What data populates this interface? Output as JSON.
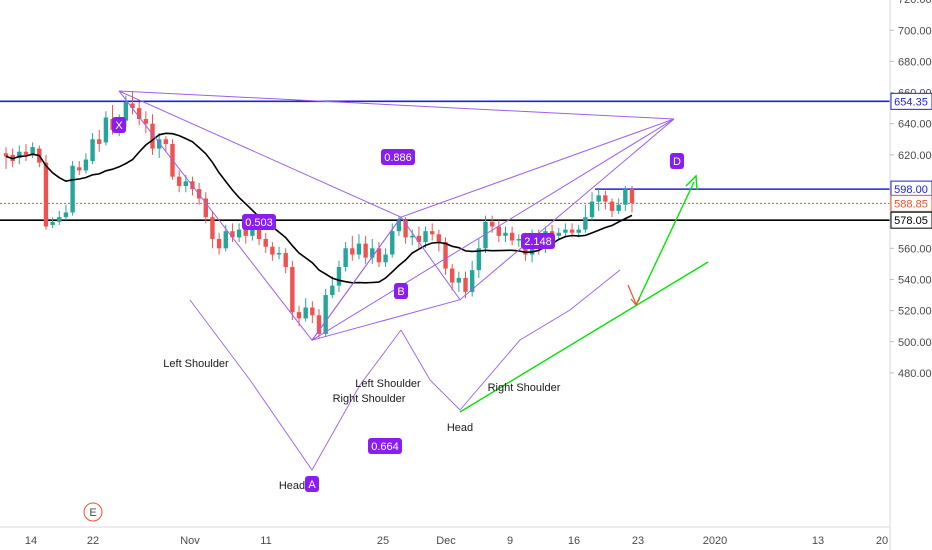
{
  "chart_data": {
    "type": "candlestick",
    "y_ticks": [
      "720.00",
      "700.00",
      "680.00",
      "660.00",
      "640.00",
      "620.00",
      "600.00",
      "580.00",
      "560.00",
      "540.00",
      "520.00",
      "500.00",
      "480.00"
    ],
    "x_ticks": [
      "14",
      "22",
      "Nov",
      "11",
      "25",
      "Dec",
      "9",
      "16",
      "23",
      "2020",
      "13",
      "20"
    ],
    "ylim": [
      474,
      726
    ],
    "price_labels": [
      {
        "text": "654.35",
        "value": 654.35,
        "color": "#1f23d6"
      },
      {
        "text": "598.00",
        "value": 598.0,
        "color": "#1f23d6"
      },
      {
        "text": "588.85",
        "value": 588.85,
        "color": "#f0512f"
      },
      {
        "text": "578.05",
        "value": 578.05,
        "color": "#000000"
      }
    ],
    "horizontal_lines": [
      {
        "value": 654.35,
        "color": "#1f23d6"
      },
      {
        "value": 578.05,
        "color": "#000000"
      },
      {
        "value": 588.85,
        "color": "#f0512f",
        "dashed": true
      }
    ],
    "harmonic_points": [
      {
        "label": "X",
        "value": 661
      },
      {
        "label": "A",
        "value": 501
      },
      {
        "label": "B",
        "value": 580
      },
      {
        "label": "D",
        "value": 643
      }
    ],
    "ratios": [
      "0.886",
      "0.503",
      "2.148",
      "0.664"
    ],
    "annotations": [
      "Left Shoulder",
      "Right Shoulder",
      "Head",
      "Left Shoulder",
      "Right Shoulder",
      "Head"
    ],
    "event_marker": "E",
    "colors": {
      "up": "#26a69a",
      "down": "#ef5350",
      "pattern": "#9c5ff2",
      "tag": "#8a1ef0",
      "trend": "#00e600",
      "ma": "#000000"
    },
    "candles": [
      [
        621,
        619,
        625,
        611
      ],
      [
        620,
        616,
        624,
        612
      ],
      [
        618,
        622,
        626,
        614
      ],
      [
        622,
        620,
        627,
        616
      ],
      [
        620,
        625,
        628,
        618
      ],
      [
        624,
        615,
        626,
        612
      ],
      [
        615,
        574,
        620,
        572
      ],
      [
        575,
        577,
        580,
        573
      ],
      [
        577,
        580,
        584,
        575
      ],
      [
        580,
        583,
        588,
        578
      ],
      [
        583,
        613,
        616,
        581
      ],
      [
        612,
        610,
        616,
        607
      ],
      [
        610,
        617,
        621,
        608
      ],
      [
        616,
        630,
        634,
        614
      ],
      [
        630,
        627,
        636,
        622
      ],
      [
        628,
        644,
        648,
        626
      ],
      [
        643,
        636,
        652,
        633
      ],
      [
        636,
        642,
        646,
        632
      ],
      [
        642,
        654,
        658,
        638
      ],
      [
        653,
        650,
        661,
        646
      ],
      [
        650,
        643,
        654,
        639
      ],
      [
        643,
        640,
        648,
        634
      ],
      [
        640,
        624,
        646,
        620
      ],
      [
        624,
        630,
        634,
        618
      ],
      [
        630,
        627,
        632,
        622
      ],
      [
        627,
        606,
        630,
        604
      ],
      [
        606,
        600,
        610,
        596
      ],
      [
        600,
        603,
        607,
        596
      ],
      [
        603,
        598,
        606,
        594
      ],
      [
        598,
        592,
        602,
        588
      ],
      [
        592,
        580,
        596,
        576
      ],
      [
        580,
        566,
        584,
        560
      ],
      [
        566,
        560,
        570,
        556
      ],
      [
        560,
        571,
        575,
        558
      ],
      [
        571,
        567,
        576,
        564
      ],
      [
        567,
        572,
        576,
        564
      ],
      [
        572,
        568,
        578,
        563
      ],
      [
        568,
        572,
        576,
        565
      ],
      [
        572,
        566,
        576,
        562
      ],
      [
        566,
        561,
        570,
        557
      ],
      [
        561,
        556,
        564,
        552
      ],
      [
        556,
        557,
        561,
        553
      ],
      [
        557,
        548,
        560,
        544
      ],
      [
        548,
        519,
        552,
        514
      ],
      [
        519,
        515,
        523,
        510
      ],
      [
        515,
        522,
        528,
        513
      ],
      [
        522,
        517,
        526,
        512
      ],
      [
        517,
        505,
        521,
        502
      ],
      [
        505,
        530,
        534,
        503
      ],
      [
        530,
        536,
        542,
        528
      ],
      [
        536,
        548,
        552,
        532
      ],
      [
        548,
        560,
        564,
        545
      ],
      [
        560,
        556,
        568,
        552
      ],
      [
        556,
        563,
        569,
        553
      ],
      [
        563,
        554,
        568,
        550
      ],
      [
        554,
        560,
        566,
        550
      ],
      [
        560,
        551,
        564,
        548
      ],
      [
        551,
        556,
        560,
        548
      ],
      [
        556,
        571,
        576,
        554
      ],
      [
        571,
        578,
        581,
        568
      ],
      [
        578,
        567,
        580,
        563
      ],
      [
        567,
        568,
        572,
        562
      ],
      [
        568,
        564,
        574,
        559
      ],
      [
        564,
        571,
        574,
        560
      ],
      [
        571,
        569,
        576,
        565
      ],
      [
        569,
        564,
        572,
        558
      ],
      [
        564,
        547,
        567,
        543
      ],
      [
        547,
        538,
        550,
        533
      ],
      [
        538,
        541,
        545,
        532
      ],
      [
        541,
        532,
        545,
        528
      ],
      [
        532,
        546,
        552,
        529
      ],
      [
        546,
        560,
        566,
        541
      ],
      [
        560,
        577,
        581,
        557
      ],
      [
        577,
        574,
        581,
        570
      ],
      [
        574,
        568,
        578,
        564
      ],
      [
        568,
        570,
        574,
        564
      ],
      [
        570,
        565,
        574,
        562
      ],
      [
        565,
        566,
        569,
        561
      ],
      [
        566,
        556,
        570,
        552
      ],
      [
        556,
        568,
        572,
        551
      ],
      [
        568,
        560,
        572,
        556
      ],
      [
        560,
        571,
        574,
        557
      ],
      [
        571,
        568,
        575,
        565
      ],
      [
        568,
        570,
        573,
        565
      ],
      [
        570,
        572,
        576,
        567
      ],
      [
        572,
        570,
        576,
        567
      ],
      [
        570,
        572,
        575,
        567
      ],
      [
        572,
        580,
        588,
        570
      ],
      [
        580,
        590,
        596,
        578
      ],
      [
        590,
        594,
        598,
        584
      ],
      [
        594,
        590,
        597,
        585
      ],
      [
        590,
        584,
        592,
        580
      ],
      [
        584,
        588,
        592,
        582
      ],
      [
        588,
        598,
        600,
        584
      ],
      [
        598,
        589,
        600,
        583
      ]
    ]
  }
}
